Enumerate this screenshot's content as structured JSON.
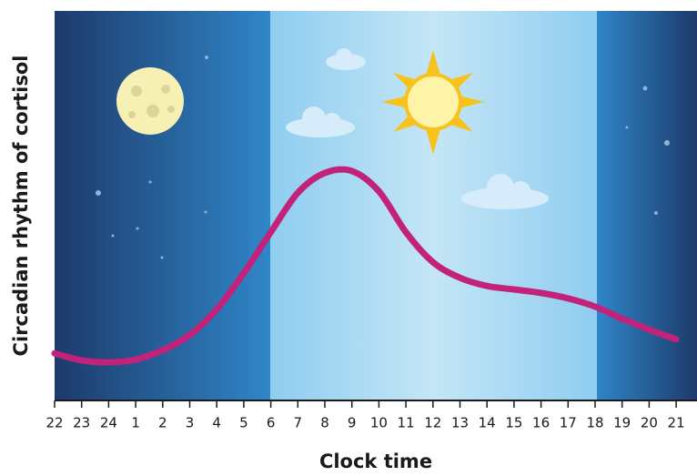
{
  "chart_data": {
    "type": "line",
    "x_label": "Clock time",
    "y_label": "Circadian rhythm of cortisol",
    "categories": [
      "22",
      "23",
      "24",
      "1",
      "2",
      "3",
      "4",
      "5",
      "6",
      "7",
      "8",
      "9",
      "10",
      "11",
      "12",
      "13",
      "14",
      "15",
      "16",
      "17",
      "18",
      "19",
      "20",
      "21"
    ],
    "series": [
      {
        "color": "#c2227a",
        "values": [
          12.1,
          10.3,
          9.8,
          10.5,
          12.9,
          16.8,
          23.4,
          32.7,
          43.2,
          53.3,
          58.4,
          58.9,
          53.7,
          43.2,
          35.5,
          31.5,
          29.4,
          28.5,
          27.6,
          26.2,
          24.1,
          21,
          18.2,
          15.7
        ]
      }
    ],
    "ylim": [
      0,
      100
    ]
  }
}
